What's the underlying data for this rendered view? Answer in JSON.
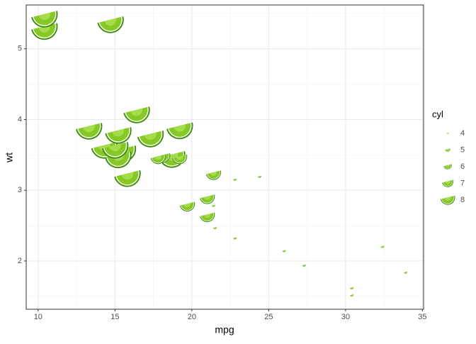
{
  "chart_data": {
    "type": "scatter",
    "x_label": "mpg",
    "y_label": "wt",
    "x": [
      21.0,
      21.0,
      22.8,
      21.4,
      18.7,
      18.1,
      14.3,
      24.4,
      22.8,
      19.2,
      17.8,
      16.4,
      17.3,
      15.2,
      10.4,
      10.4,
      14.7,
      32.4,
      30.4,
      33.9,
      21.5,
      15.5,
      15.2,
      13.3,
      19.2,
      27.3,
      26.0,
      30.4,
      15.8,
      19.7,
      15.0,
      21.4
    ],
    "values": [
      2.62,
      2.875,
      2.32,
      3.215,
      3.44,
      3.46,
      3.57,
      3.19,
      3.15,
      3.44,
      3.44,
      4.07,
      3.73,
      3.78,
      5.25,
      5.424,
      5.345,
      2.2,
      1.615,
      1.835,
      2.465,
      3.52,
      3.435,
      3.84,
      3.845,
      1.935,
      2.14,
      1.513,
      3.17,
      2.77,
      3.57,
      2.78
    ],
    "sizes": [
      6,
      6,
      4,
      6,
      8,
      6,
      8,
      4,
      4,
      6,
      6,
      8,
      8,
      8,
      8,
      8,
      8,
      4,
      4,
      4,
      4,
      8,
      8,
      8,
      8,
      4,
      4,
      4,
      8,
      6,
      8,
      4
    ],
    "xlim": [
      9.225,
      35.075
    ],
    "ylim": [
      1.3175,
      5.6195
    ],
    "xticks": [
      10,
      15,
      20,
      25,
      30,
      35
    ],
    "yticks": [
      2,
      3,
      4,
      5
    ],
    "minor_xticks": [
      12.5,
      17.5,
      22.5,
      27.5,
      32.5
    ],
    "minor_yticks": [
      1.5,
      2.5,
      3.5,
      4.5,
      5.5
    ],
    "grid": true,
    "legend": {
      "title": "cyl",
      "values": [
        4,
        5,
        6,
        7,
        8
      ]
    }
  }
}
